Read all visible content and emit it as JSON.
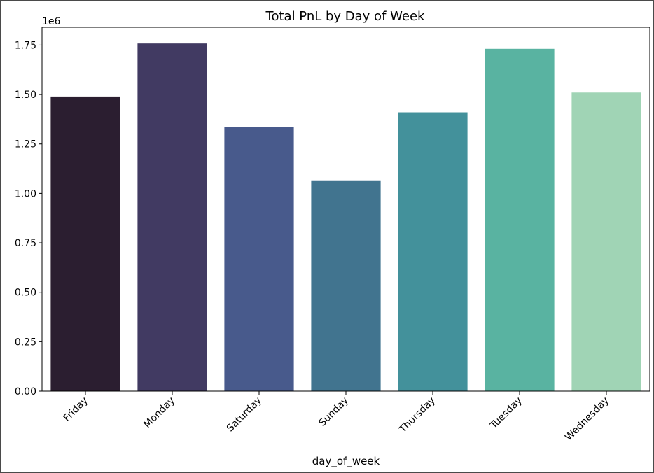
{
  "chart_data": {
    "type": "bar",
    "title": "Total PnL by Day of Week",
    "xlabel": "day_of_week",
    "ylabel": "",
    "y_offset_text": "1e6",
    "y_scale": 1000000,
    "ylim": [
      0,
      1.84
    ],
    "yticks": [
      "0.00",
      "0.25",
      "0.50",
      "0.75",
      "1.00",
      "1.25",
      "1.50",
      "1.75"
    ],
    "categories": [
      "Friday",
      "Monday",
      "Saturday",
      "Sunday",
      "Thursday",
      "Tuesday",
      "Wednesday"
    ],
    "values": [
      1490000,
      1758000,
      1335000,
      1066000,
      1410000,
      1731000,
      1510000
    ],
    "colors": [
      "#2b1e30",
      "#413a62",
      "#485a8c",
      "#41748f",
      "#43919b",
      "#59b3a1",
      "#a0d4b5"
    ],
    "grid": false,
    "legend": "none"
  }
}
